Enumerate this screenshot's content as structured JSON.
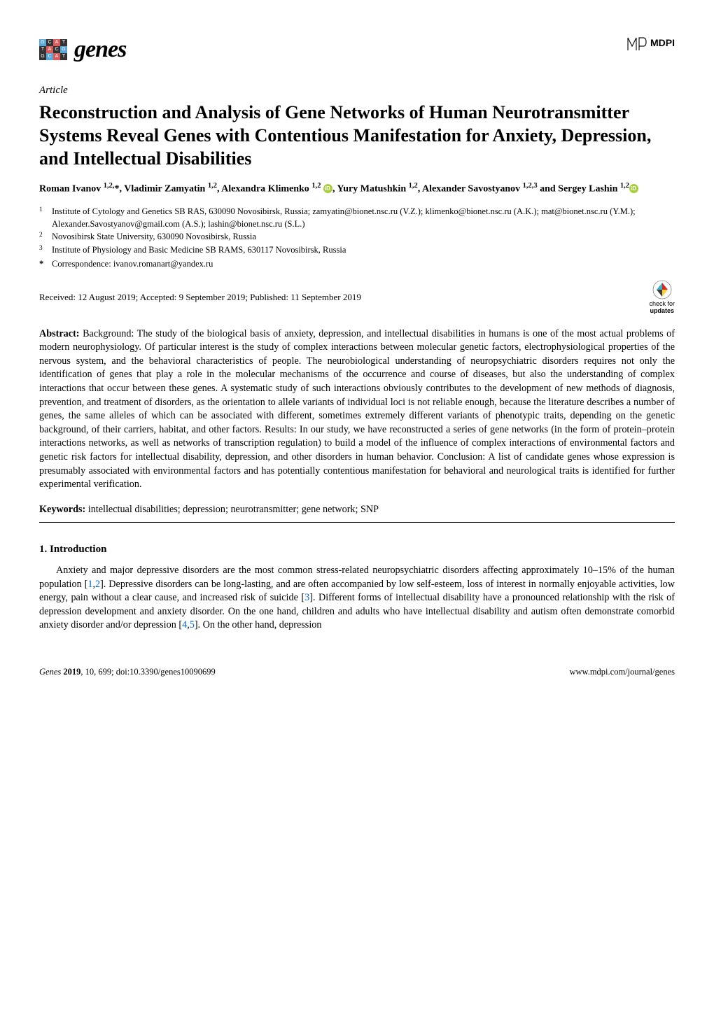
{
  "header": {
    "logo_word": "genes",
    "logo_letters": [
      "G",
      "C",
      "A",
      "T",
      "T",
      "A",
      "C",
      "G",
      "G",
      "C",
      "A",
      "T"
    ],
    "logo_colors": [
      "#5aa8d8",
      "#333333",
      "#d95b5b",
      "#333333",
      "#333333",
      "#d95b5b",
      "#333333",
      "#5aa8d8",
      "#333333",
      "#5aa8d8",
      "#d95b5b",
      "#333333"
    ],
    "publisher": "MDPI"
  },
  "article_label": "Article",
  "title": "Reconstruction and Analysis of Gene Networks of Human Neurotransmitter Systems Reveal Genes with Contentious Manifestation for Anxiety, Depression, and Intellectual Disabilities",
  "authors_html": "Roman Ivanov <sup>1,2,</sup>*, Vladimir Zamyatin <sup>1,2</sup>, Alexandra Klimenko <sup>1,2</sup> <span class='orcid' data-name='orcid-icon' data-interactable='false'></span>, Yury Matushkin <sup>1,2</sup>, Alexander Savostyanov <sup>1,2,3</sup> and Sergey Lashin <sup>1,2</sup><span class='orcid' data-name='orcid-icon' data-interactable='false'></span>",
  "affiliations": [
    {
      "num": "1",
      "text": "Institute of Cytology and Genetics SB RAS, 630090 Novosibirsk, Russia; zamyatin@bionet.nsc.ru (V.Z.); klimenko@bionet.nsc.ru (A.K.); mat@bionet.nsc.ru (Y.M.); Alexander.Savostyanov@gmail.com (A.S.); lashin@bionet.nsc.ru (S.L.)"
    },
    {
      "num": "2",
      "text": "Novosibirsk State University, 630090 Novosibirsk, Russia"
    },
    {
      "num": "3",
      "text": "Institute of Physiology and Basic Medicine SB RAMS, 630117 Novosibirsk, Russia"
    },
    {
      "num": "*",
      "text": "Correspondence: ivanov.romanart@yandex.ru"
    }
  ],
  "dates": "Received: 12 August 2019; Accepted: 9 September 2019; Published: 11 September 2019",
  "check_updates": {
    "line1": "check for",
    "line2": "updates"
  },
  "abstract_label": "Abstract:",
  "abstract_text": " Background: The study of the biological basis of anxiety, depression, and intellectual disabilities in humans is one of the most actual problems of modern neurophysiology. Of particular interest is the study of complex interactions between molecular genetic factors, electrophysiological properties of the nervous system, and the behavioral characteristics of people. The neurobiological understanding of neuropsychiatric disorders requires not only the identification of genes that play a role in the molecular mechanisms of the occurrence and course of diseases, but also the understanding of complex interactions that occur between these genes. A systematic study of such interactions obviously contributes to the development of new methods of diagnosis, prevention, and treatment of disorders, as the orientation to allele variants of individual loci is not reliable enough, because the literature describes a number of genes, the same alleles of which can be associated with different, sometimes extremely different variants of phenotypic traits, depending on the genetic background, of their carriers, habitat, and other factors. Results: In our study, we have reconstructed a series of gene networks (in the form of protein–protein interactions networks, as well as networks of transcription regulation) to build a model of the influence of complex interactions of environmental factors and genetic risk factors for intellectual disability, depression, and other disorders in human behavior. Conclusion: A list of candidate genes whose expression is presumably associated with environmental factors and has potentially contentious manifestation for behavioral and neurological traits is identified for further experimental verification.",
  "keywords_label": "Keywords:",
  "keywords_text": " intellectual disabilities; depression; neurotransmitter; gene network; SNP",
  "section1_heading": "1. Introduction",
  "intro_para_pre": "Anxiety and major depressive disorders are the most common stress-related neuropsychiatric disorders affecting approximately 10–15% of the human population [",
  "cite1": "1",
  "cite_sep12": ",",
  "cite2": "2",
  "intro_para_mid1": "]. Depressive disorders can be long-lasting, and are often accompanied by low self-esteem, loss of interest in normally enjoyable activities, low energy, pain without a clear cause, and increased risk of suicide [",
  "cite3": "3",
  "intro_para_mid2": "]. Different forms of intellectual disability have a pronounced relationship with the risk of depression development and anxiety disorder. On the one hand, children and adults who have intellectual disability and autism often demonstrate comorbid anxiety disorder and/or depression [",
  "cite4": "4",
  "cite_sep45": ",",
  "cite5": "5",
  "intro_para_end": "]. On the other hand, depression",
  "footer": {
    "left_italic": "Genes ",
    "left_bold": "2019",
    "left_rest": ", 10, 699; doi:10.3390/genes10090699",
    "right": "www.mdpi.com/journal/genes"
  },
  "colors": {
    "citation": "#0066cc",
    "orcid": "#A6CE39",
    "crossref_red": "#d9281e",
    "crossref_blue": "#3eb1c8",
    "crossref_yellow": "#fccf3c",
    "crossref_grey": "#3c3c3b"
  }
}
